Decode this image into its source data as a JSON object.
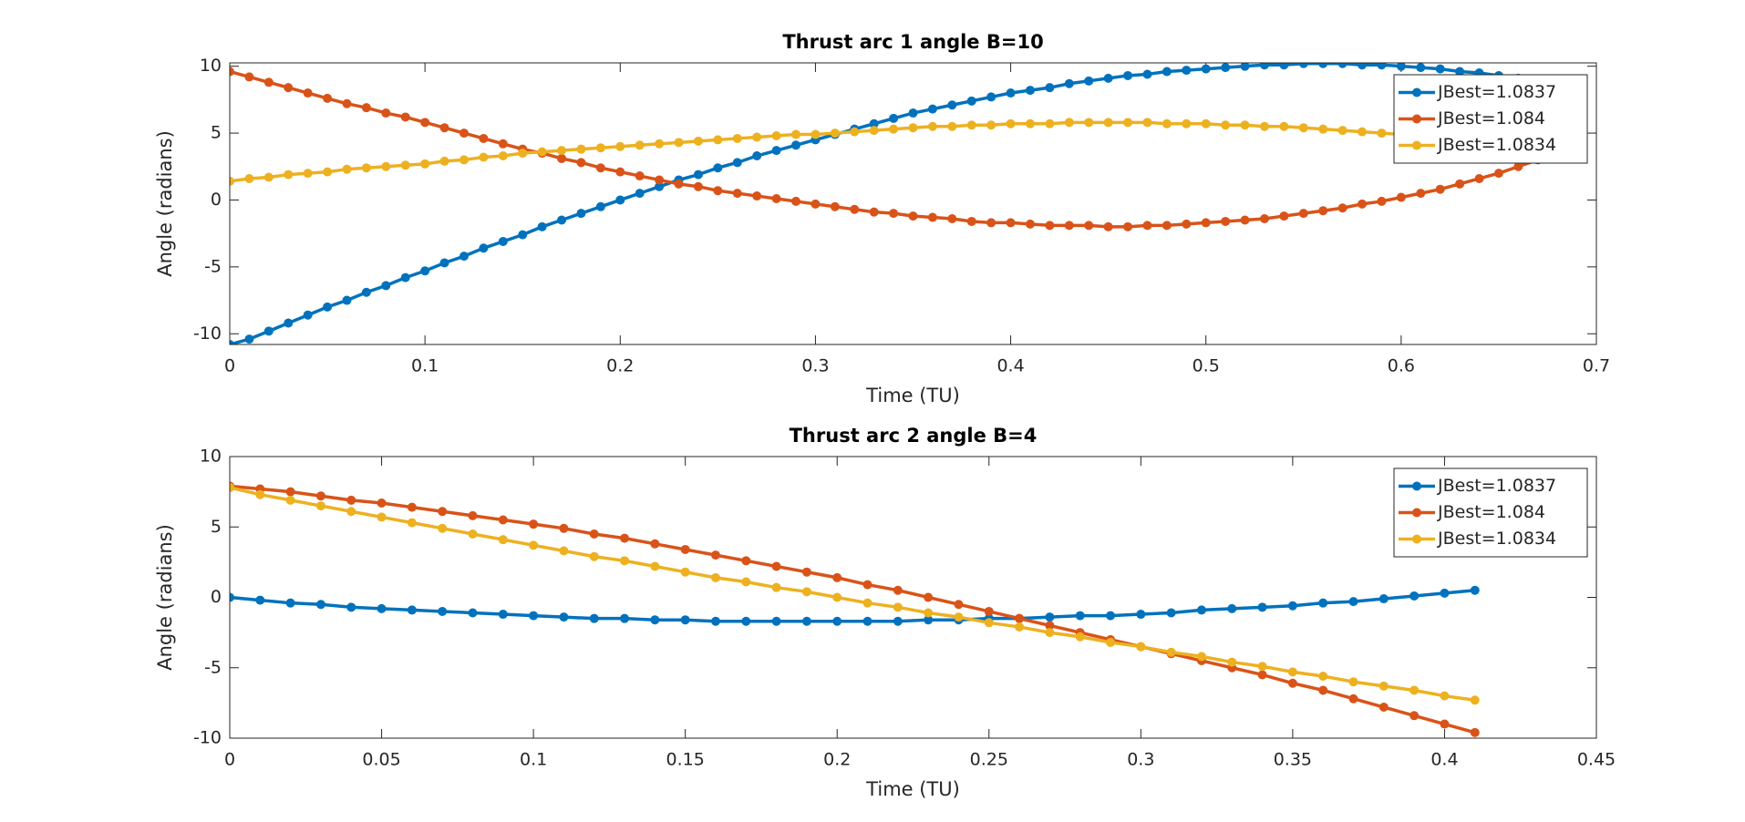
{
  "chart_data": [
    {
      "type": "line",
      "title": "Thrust arc 1 angle B=10",
      "xlabel": "Time (TU)",
      "ylabel": "Angle (radians)",
      "x": [
        0,
        0.01,
        0.02,
        0.03,
        0.04,
        0.05,
        0.06,
        0.07,
        0.08,
        0.09,
        0.1,
        0.11,
        0.12,
        0.13,
        0.14,
        0.15,
        0.16,
        0.17,
        0.18,
        0.19,
        0.2,
        0.21,
        0.22,
        0.23,
        0.24,
        0.25,
        0.26,
        0.27,
        0.28,
        0.29,
        0.3,
        0.31,
        0.32,
        0.33,
        0.34,
        0.35,
        0.36,
        0.37,
        0.38,
        0.39,
        0.4,
        0.41,
        0.42,
        0.43,
        0.44,
        0.45,
        0.46,
        0.47,
        0.48,
        0.49,
        0.5,
        0.51,
        0.52,
        0.53,
        0.54,
        0.55,
        0.56,
        0.57,
        0.58,
        0.59,
        0.6,
        0.61,
        0.62,
        0.63,
        0.64,
        0.65,
        0.66,
        0.67
      ],
      "series": [
        {
          "name": "JBest=1.0837",
          "color": "#0072BD",
          "values": [
            -10.8,
            -10.4,
            -9.8,
            -9.2,
            -8.6,
            -8.0,
            -7.5,
            -6.9,
            -6.4,
            -5.8,
            -5.3,
            -4.7,
            -4.2,
            -3.6,
            -3.1,
            -2.6,
            -2.0,
            -1.5,
            -1.0,
            -0.5,
            0.0,
            0.5,
            1.0,
            1.5,
            1.9,
            2.4,
            2.8,
            3.3,
            3.7,
            4.1,
            4.5,
            4.9,
            5.3,
            5.7,
            6.1,
            6.5,
            6.8,
            7.1,
            7.4,
            7.7,
            8.0,
            8.2,
            8.4,
            8.7,
            8.9,
            9.1,
            9.3,
            9.4,
            9.6,
            9.7,
            9.8,
            9.9,
            10.0,
            10.1,
            10.1,
            10.2,
            10.2,
            10.2,
            10.1,
            10.1,
            10.0,
            9.9,
            9.8,
            9.6,
            9.5,
            9.3,
            9.1,
            8.9
          ]
        },
        {
          "name": "JBest=1.084",
          "color": "#D95319",
          "values": [
            9.6,
            9.2,
            8.8,
            8.4,
            8.0,
            7.6,
            7.2,
            6.9,
            6.5,
            6.2,
            5.8,
            5.4,
            5.0,
            4.6,
            4.2,
            3.8,
            3.5,
            3.1,
            2.8,
            2.4,
            2.1,
            1.8,
            1.5,
            1.2,
            1.0,
            0.7,
            0.5,
            0.3,
            0.1,
            -0.1,
            -0.3,
            -0.5,
            -0.7,
            -0.9,
            -1.0,
            -1.2,
            -1.3,
            -1.4,
            -1.6,
            -1.7,
            -1.7,
            -1.8,
            -1.9,
            -1.9,
            -1.9,
            -2.0,
            -2.0,
            -1.9,
            -1.9,
            -1.8,
            -1.7,
            -1.6,
            -1.5,
            -1.4,
            -1.2,
            -1.0,
            -0.8,
            -0.6,
            -0.3,
            -0.1,
            0.2,
            0.5,
            0.8,
            1.2,
            1.6,
            2.0,
            2.5,
            3.0
          ]
        },
        {
          "name": "JBest=1.0834",
          "color": "#EDB120",
          "values": [
            1.4,
            1.6,
            1.7,
            1.9,
            2.0,
            2.1,
            2.3,
            2.4,
            2.5,
            2.6,
            2.7,
            2.9,
            3.0,
            3.2,
            3.3,
            3.5,
            3.6,
            3.7,
            3.8,
            3.9,
            4.0,
            4.1,
            4.2,
            4.3,
            4.4,
            4.5,
            4.6,
            4.7,
            4.8,
            4.9,
            4.9,
            5.0,
            5.1,
            5.2,
            5.3,
            5.4,
            5.5,
            5.5,
            5.6,
            5.6,
            5.7,
            5.7,
            5.7,
            5.8,
            5.8,
            5.8,
            5.8,
            5.8,
            5.7,
            5.7,
            5.7,
            5.6,
            5.6,
            5.5,
            5.5,
            5.4,
            5.3,
            5.2,
            5.1,
            5.0,
            4.9,
            4.8,
            4.7,
            4.6,
            4.5,
            4.4,
            4.2,
            4.1
          ]
        }
      ],
      "xlim": [
        0,
        0.7
      ],
      "ylim": [
        -10.8,
        10.25
      ],
      "xticks": [
        0,
        0.1,
        0.2,
        0.3,
        0.4,
        0.5,
        0.6,
        0.7
      ],
      "yticks": [
        -10,
        -5,
        0,
        5,
        10
      ],
      "legend": "upper right"
    },
    {
      "type": "line",
      "title": "Thrust arc 2 angle B=4",
      "xlabel": "Time (TU)",
      "ylabel": "Angle (radians)",
      "x": [
        0,
        0.01,
        0.02,
        0.03,
        0.04,
        0.05,
        0.06,
        0.07,
        0.08,
        0.09,
        0.1,
        0.11,
        0.12,
        0.13,
        0.14,
        0.15,
        0.16,
        0.17,
        0.18,
        0.19,
        0.2,
        0.21,
        0.22,
        0.23,
        0.24,
        0.25,
        0.26,
        0.27,
        0.28,
        0.29,
        0.3,
        0.31,
        0.32,
        0.33,
        0.34,
        0.35,
        0.36,
        0.37,
        0.38,
        0.39,
        0.4,
        0.41
      ],
      "series": [
        {
          "name": "JBest=1.0837",
          "color": "#0072BD",
          "values": [
            0.0,
            -0.2,
            -0.4,
            -0.5,
            -0.7,
            -0.8,
            -0.9,
            -1.0,
            -1.1,
            -1.2,
            -1.3,
            -1.4,
            -1.5,
            -1.5,
            -1.6,
            -1.6,
            -1.7,
            -1.7,
            -1.7,
            -1.7,
            -1.7,
            -1.7,
            -1.7,
            -1.6,
            -1.6,
            -1.5,
            -1.5,
            -1.4,
            -1.3,
            -1.3,
            -1.2,
            -1.1,
            -0.9,
            -0.8,
            -0.7,
            -0.6,
            -0.4,
            -0.3,
            -0.1,
            0.1,
            0.3,
            0.5
          ]
        },
        {
          "name": "JBest=1.084",
          "color": "#D95319",
          "values": [
            7.9,
            7.7,
            7.5,
            7.2,
            6.9,
            6.7,
            6.4,
            6.1,
            5.8,
            5.5,
            5.2,
            4.9,
            4.5,
            4.2,
            3.8,
            3.4,
            3.0,
            2.6,
            2.2,
            1.8,
            1.4,
            0.9,
            0.5,
            0.0,
            -0.5,
            -1.0,
            -1.5,
            -2.0,
            -2.5,
            -3.0,
            -3.5,
            -4.0,
            -4.5,
            -5.0,
            -5.5,
            -6.1,
            -6.6,
            -7.2,
            -7.8,
            -8.4,
            -9.0,
            -9.6
          ]
        },
        {
          "name": "JBest=1.0834",
          "color": "#EDB120",
          "values": [
            7.8,
            7.3,
            6.9,
            6.5,
            6.1,
            5.7,
            5.3,
            4.9,
            4.5,
            4.1,
            3.7,
            3.3,
            2.9,
            2.6,
            2.2,
            1.8,
            1.4,
            1.1,
            0.7,
            0.4,
            0.0,
            -0.4,
            -0.7,
            -1.1,
            -1.4,
            -1.8,
            -2.1,
            -2.5,
            -2.8,
            -3.2,
            -3.5,
            -3.9,
            -4.2,
            -4.6,
            -4.9,
            -5.3,
            -5.6,
            -6.0,
            -6.3,
            -6.6,
            -7.0,
            -7.3
          ]
        }
      ],
      "xlim": [
        0,
        0.45
      ],
      "ylim": [
        -10,
        10
      ],
      "xticks": [
        0,
        0.05,
        0.1,
        0.15,
        0.2,
        0.25,
        0.3,
        0.35,
        0.4,
        0.45
      ],
      "yticks": [
        -10,
        -5,
        0,
        5,
        10
      ],
      "legend": "upper right"
    }
  ]
}
